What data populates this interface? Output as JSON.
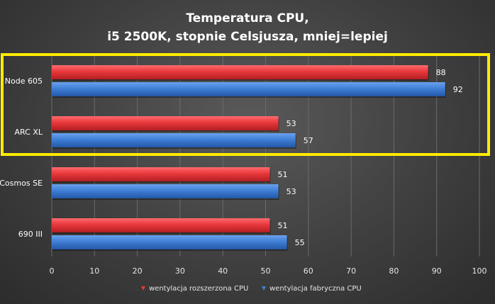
{
  "chart_data": {
    "type": "bar",
    "orientation": "horizontal",
    "title": [
      "Temperatura CPU,",
      "i5 2500K, stopnie Celsjusza, mniej=lepiej"
    ],
    "categories": [
      "Node 605",
      "ARC XL",
      "Cosmos SE",
      "690 III"
    ],
    "series": [
      {
        "name": "wentylacja rozszerzona CPU",
        "color": "#e8383c",
        "values": [
          88,
          53,
          51,
          51
        ]
      },
      {
        "name": "wentylacja fabryczna CPU",
        "color": "#3f7fd6",
        "values": [
          92,
          57,
          53,
          55
        ]
      }
    ],
    "x_ticks": [
      0,
      10,
      20,
      30,
      40,
      50,
      60,
      70,
      80,
      90,
      100
    ],
    "xlim": [
      0,
      100
    ],
    "grid": true,
    "legend_position": "bottom",
    "highlight": {
      "categories": [
        "Node 605",
        "ARC XL"
      ],
      "color": "#ffec00"
    }
  }
}
